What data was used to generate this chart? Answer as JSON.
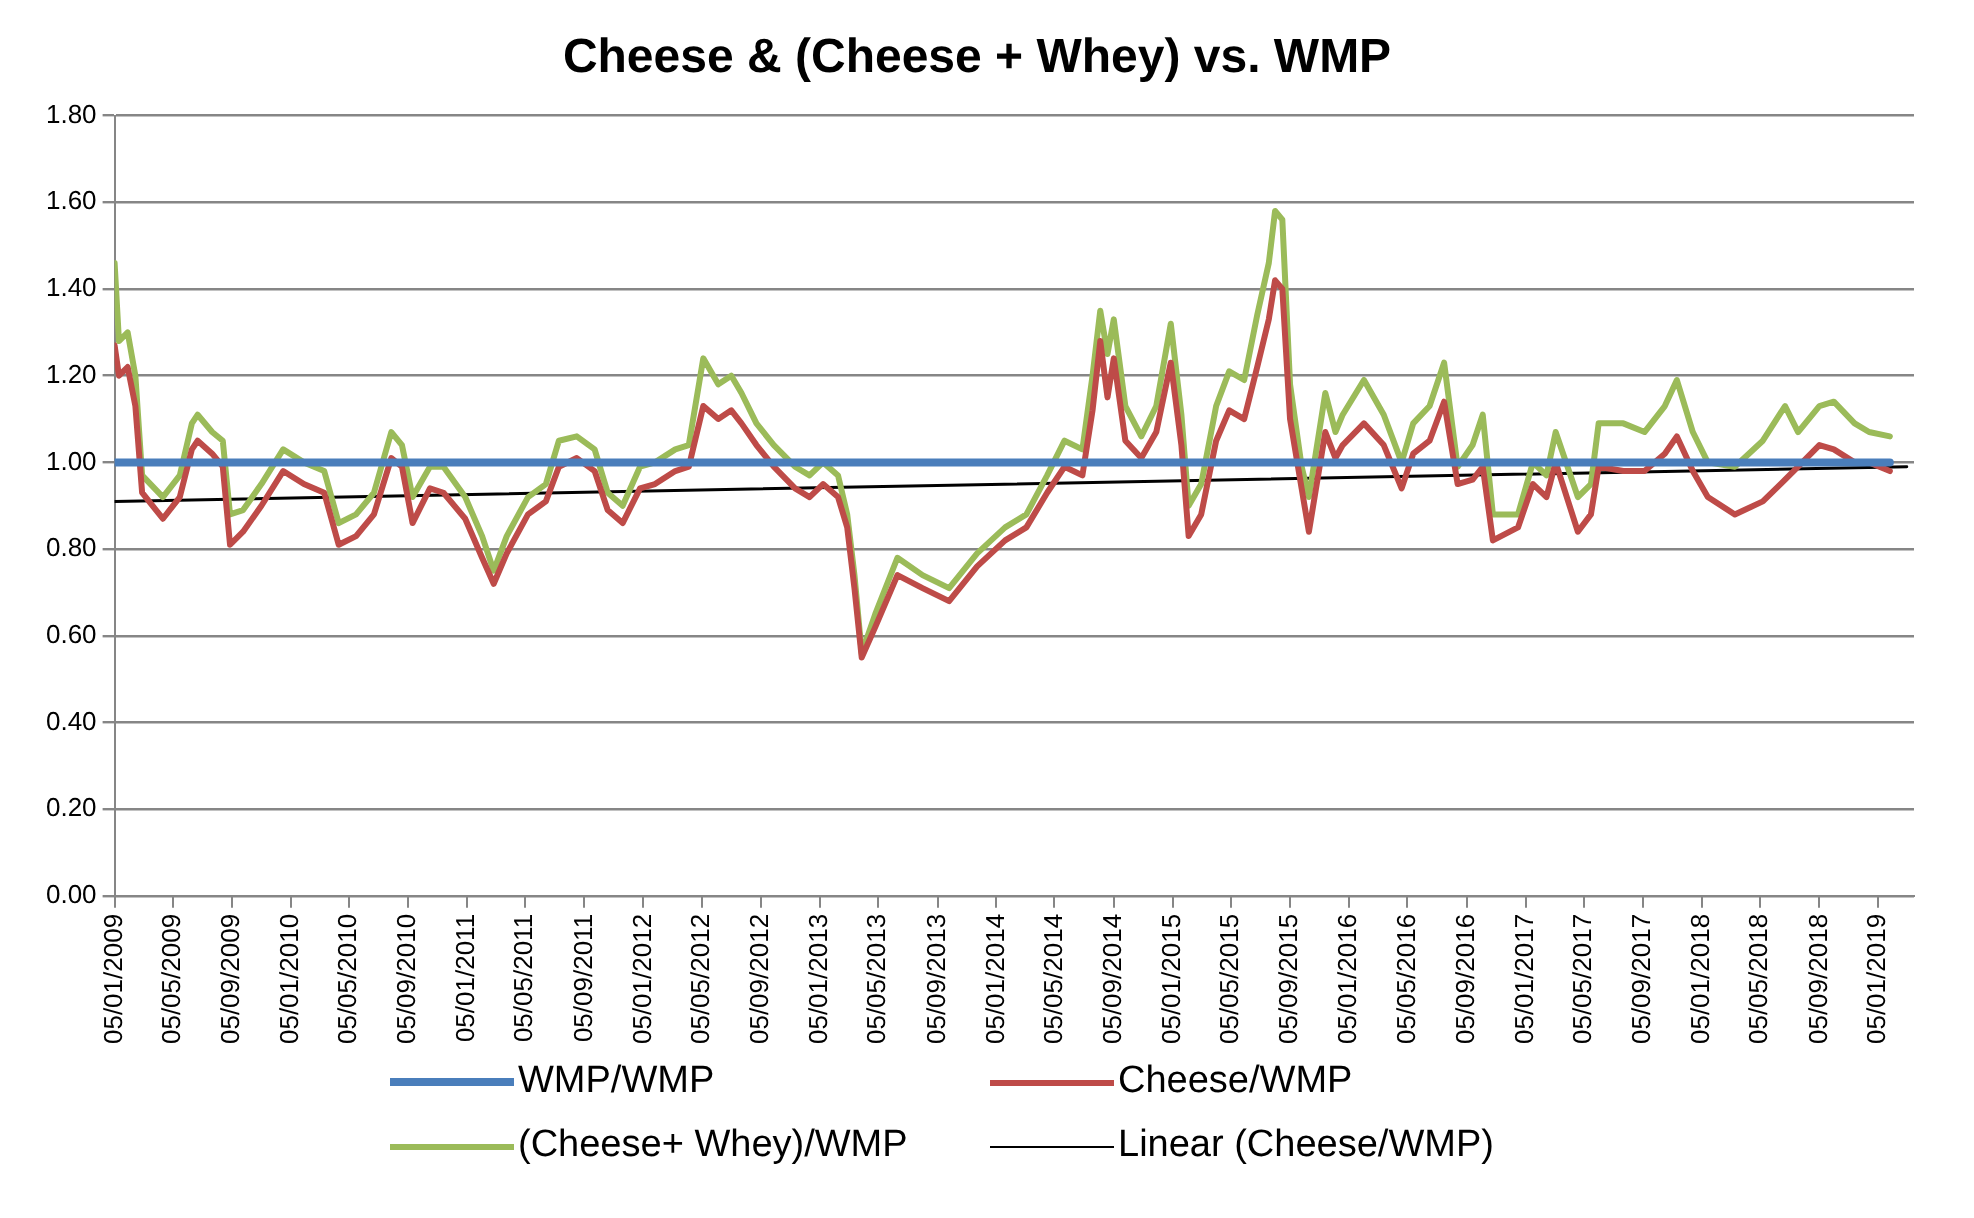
{
  "chart_data": {
    "type": "line",
    "title": "Cheese & (Cheese + Whey) vs. WMP",
    "x": [
      "2009-01-05",
      "2009-01-14",
      "2009-02-01",
      "2009-02-17",
      "2009-03-03",
      "2009-04-15",
      "2009-05-20",
      "2009-06-14",
      "2009-06-26",
      "2009-07-26",
      "2009-08-17",
      "2009-09-01",
      "2009-09-28",
      "2009-11-05",
      "2009-12-20",
      "2010-02-01",
      "2010-03-15",
      "2010-04-14",
      "2010-05-20",
      "2010-06-26",
      "2010-08-01",
      "2010-08-23",
      "2010-09-14",
      "2010-10-20",
      "2010-11-17",
      "2011-01-01",
      "2011-02-05",
      "2011-03-01",
      "2011-03-28",
      "2011-05-11",
      "2011-06-17",
      "2011-07-14",
      "2011-08-20",
      "2011-09-26",
      "2011-10-23",
      "2011-11-23",
      "2011-12-29",
      "2012-01-29",
      "2012-03-11",
      "2012-04-08",
      "2012-05-08",
      "2012-06-08",
      "2012-07-05",
      "2012-07-26",
      "2012-08-26",
      "2012-10-01",
      "2012-11-14",
      "2012-12-14",
      "2013-01-11",
      "2013-02-11",
      "2013-03-02",
      "2013-03-17",
      "2013-04-01",
      "2013-04-29",
      "2013-06-14",
      "2013-08-05",
      "2013-09-29",
      "2013-11-26",
      "2014-01-23",
      "2014-03-08",
      "2014-04-20",
      "2014-05-26",
      "2014-07-02",
      "2014-07-23",
      "2014-08-08",
      "2014-08-23",
      "2014-09-05",
      "2014-09-29",
      "2014-11-01",
      "2014-12-02",
      "2015-01-01",
      "2015-01-23",
      "2015-02-07",
      "2015-03-05",
      "2015-04-05",
      "2015-05-02",
      "2015-06-02",
      "2015-06-29",
      "2015-07-23",
      "2015-08-05",
      "2015-08-20",
      "2015-09-05",
      "2015-09-29",
      "2015-10-14",
      "2015-11-17",
      "2015-12-08",
      "2015-12-23",
      "2016-02-05",
      "2016-03-17",
      "2016-04-23",
      "2016-05-17",
      "2016-06-20",
      "2016-07-20",
      "2016-08-17",
      "2016-09-17",
      "2016-10-08",
      "2016-10-29",
      "2016-12-20",
      "2017-01-20",
      "2017-02-17",
      "2017-03-08",
      "2017-04-23",
      "2017-05-20",
      "2017-06-05",
      "2017-07-26",
      "2017-09-08",
      "2017-10-20",
      "2017-11-14",
      "2017-12-17",
      "2018-01-17",
      "2018-03-14",
      "2018-05-11",
      "2018-06-26",
      "2018-07-23",
      "2018-09-05",
      "2018-10-05",
      "2018-11-17",
      "2018-12-17",
      "2019-01-29"
    ],
    "series": [
      {
        "name": "WMP/WMP",
        "color": "#4a7ebb",
        "x": [
          "2009-01-05",
          "2019-01-29"
        ],
        "values": [
          1.0,
          1.0
        ]
      },
      {
        "name": "Cheese/WMP",
        "color": "#be4b48",
        "values": [
          1.27,
          1.2,
          1.22,
          1.13,
          0.93,
          0.87,
          0.92,
          1.03,
          1.05,
          1.02,
          0.99,
          0.81,
          0.84,
          0.9,
          0.98,
          0.95,
          0.93,
          0.81,
          0.83,
          0.88,
          1.01,
          0.99,
          0.86,
          0.94,
          0.93,
          0.87,
          0.78,
          0.72,
          0.79,
          0.88,
          0.91,
          0.99,
          1.01,
          0.98,
          0.89,
          0.86,
          0.94,
          0.95,
          0.98,
          0.99,
          1.13,
          1.1,
          1.12,
          1.09,
          1.04,
          0.99,
          0.94,
          0.92,
          0.95,
          0.92,
          0.85,
          0.71,
          0.55,
          0.62,
          0.74,
          0.71,
          0.68,
          0.76,
          0.82,
          0.85,
          0.93,
          0.99,
          0.97,
          1.12,
          1.28,
          1.15,
          1.24,
          1.05,
          1.01,
          1.07,
          1.23,
          1.04,
          0.83,
          0.88,
          1.05,
          1.12,
          1.1,
          1.22,
          1.33,
          1.42,
          1.4,
          1.1,
          0.94,
          0.84,
          1.07,
          1.01,
          1.04,
          1.09,
          1.04,
          0.94,
          1.02,
          1.05,
          1.14,
          0.95,
          0.96,
          0.99,
          0.82,
          0.85,
          0.95,
          0.92,
          1.0,
          0.84,
          0.88,
          0.99,
          0.98,
          0.98,
          1.02,
          1.06,
          0.98,
          0.92,
          0.88,
          0.91,
          0.96,
          0.99,
          1.04,
          1.03,
          1.0,
          1.0,
          0.98
        ]
      },
      {
        "name": "(Cheese+ Whey)/WMP",
        "color": "#9bbb59",
        "values": [
          1.46,
          1.28,
          1.3,
          1.2,
          0.97,
          0.92,
          0.97,
          1.09,
          1.11,
          1.07,
          1.05,
          0.88,
          0.89,
          0.95,
          1.03,
          1.0,
          0.98,
          0.86,
          0.88,
          0.93,
          1.07,
          1.04,
          0.92,
          0.99,
          0.99,
          0.92,
          0.83,
          0.75,
          0.83,
          0.92,
          0.95,
          1.05,
          1.06,
          1.03,
          0.93,
          0.9,
          0.99,
          1.0,
          1.03,
          1.04,
          1.24,
          1.18,
          1.2,
          1.16,
          1.09,
          1.04,
          0.99,
          0.97,
          1.0,
          0.97,
          0.88,
          0.74,
          0.56,
          0.65,
          0.78,
          0.74,
          0.71,
          0.79,
          0.85,
          0.88,
          0.97,
          1.05,
          1.03,
          1.2,
          1.35,
          1.25,
          1.33,
          1.13,
          1.06,
          1.13,
          1.32,
          1.11,
          0.9,
          0.95,
          1.13,
          1.21,
          1.19,
          1.34,
          1.46,
          1.58,
          1.56,
          1.18,
          0.99,
          0.92,
          1.16,
          1.07,
          1.11,
          1.19,
          1.11,
          1.0,
          1.09,
          1.13,
          1.23,
          0.99,
          1.04,
          1.11,
          0.88,
          0.88,
          1.0,
          0.97,
          1.07,
          0.92,
          0.95,
          1.09,
          1.09,
          1.07,
          1.13,
          1.19,
          1.07,
          1.0,
          0.99,
          1.05,
          1.13,
          1.07,
          1.13,
          1.14,
          1.09,
          1.07,
          1.06
        ]
      },
      {
        "name": "Linear (Cheese/WMP)",
        "color": "#000000",
        "x": [
          "2009-01-05",
          "2019-03-05"
        ],
        "values": [
          0.91,
          0.99
        ]
      }
    ],
    "xlim": [
      "2009-01-05",
      "2019-03-20"
    ],
    "xticks": [
      {
        "value": "2009-01-05",
        "label": "05/01/2009"
      },
      {
        "value": "2009-05-05",
        "label": "05/05/2009"
      },
      {
        "value": "2009-09-05",
        "label": "05/09/2009"
      },
      {
        "value": "2010-01-05",
        "label": "05/01/2010"
      },
      {
        "value": "2010-05-05",
        "label": "05/05/2010"
      },
      {
        "value": "2010-09-05",
        "label": "05/09/2010"
      },
      {
        "value": "2011-01-05",
        "label": "05/01/2011"
      },
      {
        "value": "2011-05-05",
        "label": "05/05/2011"
      },
      {
        "value": "2011-09-05",
        "label": "05/09/2011"
      },
      {
        "value": "2012-01-05",
        "label": "05/01/2012"
      },
      {
        "value": "2012-05-05",
        "label": "05/05/2012"
      },
      {
        "value": "2012-09-05",
        "label": "05/09/2012"
      },
      {
        "value": "2013-01-05",
        "label": "05/01/2013"
      },
      {
        "value": "2013-05-05",
        "label": "05/05/2013"
      },
      {
        "value": "2013-09-05",
        "label": "05/09/2013"
      },
      {
        "value": "2014-01-05",
        "label": "05/01/2014"
      },
      {
        "value": "2014-05-05",
        "label": "05/05/2014"
      },
      {
        "value": "2014-09-05",
        "label": "05/09/2014"
      },
      {
        "value": "2015-01-05",
        "label": "05/01/2015"
      },
      {
        "value": "2015-05-05",
        "label": "05/05/2015"
      },
      {
        "value": "2015-09-05",
        "label": "05/09/2015"
      },
      {
        "value": "2016-01-05",
        "label": "05/01/2016"
      },
      {
        "value": "2016-05-05",
        "label": "05/05/2016"
      },
      {
        "value": "2016-09-05",
        "label": "05/09/2016"
      },
      {
        "value": "2017-01-05",
        "label": "05/01/2017"
      },
      {
        "value": "2017-05-05",
        "label": "05/05/2017"
      },
      {
        "value": "2017-09-05",
        "label": "05/09/2017"
      },
      {
        "value": "2018-01-05",
        "label": "05/01/2018"
      },
      {
        "value": "2018-05-05",
        "label": "05/05/2018"
      },
      {
        "value": "2018-09-05",
        "label": "05/09/2018"
      },
      {
        "value": "2019-01-05",
        "label": "05/01/2019"
      }
    ],
    "ylim": [
      0,
      1.8
    ],
    "yticks": [
      {
        "value": 0,
        "label": "0.00"
      },
      {
        "value": 0.2,
        "label": "0.20"
      },
      {
        "value": 0.4,
        "label": "0.40"
      },
      {
        "value": 0.6,
        "label": "0.60"
      },
      {
        "value": 0.8,
        "label": "0.80"
      },
      {
        "value": 1.0,
        "label": "1.00"
      },
      {
        "value": 1.2,
        "label": "1.20"
      },
      {
        "value": 1.4,
        "label": "1.40"
      },
      {
        "value": 1.6,
        "label": "1.60"
      },
      {
        "value": 1.8,
        "label": "1.80"
      }
    ],
    "grid": "y",
    "legend": "bottom",
    "marker": "none",
    "line_style": "solid"
  }
}
